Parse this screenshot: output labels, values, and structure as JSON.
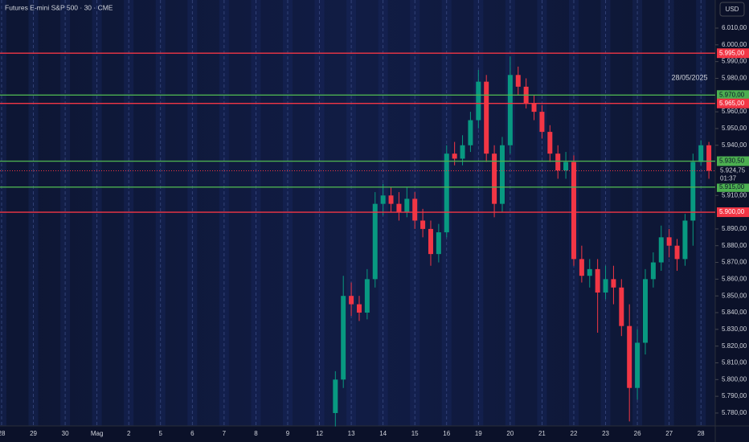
{
  "chart_data": {
    "type": "candlestick",
    "title": "Futures E-mini S&P 500 · 30 · CME",
    "currency": "USD",
    "annotation": "28/05/2025",
    "countdown": "01:37",
    "categories": [
      "28",
      "29",
      "30",
      "Mag",
      "2",
      "5",
      "6",
      "7",
      "8",
      "9",
      "12",
      "13",
      "14",
      "15",
      "16",
      "19",
      "20",
      "21",
      "22",
      "23",
      "26",
      "27",
      "28"
    ],
    "xlim": [
      -0.05,
      22.45
    ],
    "ylim": [
      5772.3,
      6026.8
    ],
    "yticks": [
      {
        "value": 6010,
        "label": "6.010,00"
      },
      {
        "value": 6000,
        "label": "6.000,00"
      },
      {
        "value": 5990,
        "label": "5.990,00"
      },
      {
        "value": 5980,
        "label": "5.980,00"
      },
      {
        "value": 5960,
        "label": "5.960,00"
      },
      {
        "value": 5950,
        "label": "5.950,00"
      },
      {
        "value": 5940,
        "label": "5.940,00"
      },
      {
        "value": 5910,
        "label": "5.910,00"
      },
      {
        "value": 5890,
        "label": "5.890,00"
      },
      {
        "value": 5880,
        "label": "5.880,00"
      },
      {
        "value": 5870,
        "label": "5.870,00"
      },
      {
        "value": 5860,
        "label": "5.860,00"
      },
      {
        "value": 5850,
        "label": "5.850,00"
      },
      {
        "value": 5840,
        "label": "5.840,00"
      },
      {
        "value": 5830,
        "label": "5.830,00"
      },
      {
        "value": 5820,
        "label": "5.820,00"
      },
      {
        "value": 5810,
        "label": "5.810,00"
      },
      {
        "value": 5800,
        "label": "5.800,00"
      },
      {
        "value": 5790,
        "label": "5.790,00"
      },
      {
        "value": 5780,
        "label": "5.780,00"
      }
    ],
    "levels": [
      {
        "value": 5995,
        "label": "5.995,00",
        "color": "#f23645"
      },
      {
        "value": 5970,
        "label": "5.970,00",
        "color": "#4caf50"
      },
      {
        "value": 5965,
        "label": "5.965,00",
        "color": "#f23645"
      },
      {
        "value": 5930.5,
        "label": "5.930,50",
        "color": "#4caf50"
      },
      {
        "value": 5915,
        "label": "5.915,00",
        "color": "#4caf50"
      },
      {
        "value": 5900,
        "label": "5.900,00",
        "color": "#f23645"
      }
    ],
    "last_price": {
      "value": 5924.75,
      "label": "5.924,75"
    },
    "up_color": "#089981",
    "down_color": "#f23645",
    "x": [
      10.5,
      10.75,
      11,
      11.25,
      11.5,
      11.75,
      12,
      12.25,
      12.5,
      12.75,
      13,
      13.25,
      13.5,
      13.75,
      14,
      14.25,
      14.5,
      14.75,
      15,
      15.25,
      15.5,
      15.75,
      16,
      16.25,
      16.5,
      16.75,
      17,
      17.25,
      17.5,
      17.75,
      18,
      18.25,
      18.5,
      18.75,
      19,
      19.25,
      19.5,
      19.75,
      20,
      20.25,
      20.5,
      20.75,
      21,
      21.25,
      21.5,
      21.75,
      22,
      22.25
    ],
    "open": [
      5780,
      5800,
      5850,
      5845,
      5840,
      5860,
      5905,
      5910,
      5905,
      5900,
      5908,
      5895,
      5890,
      5875,
      5888,
      5935,
      5932,
      5940,
      5955,
      5978,
      5935,
      5905,
      5940,
      5982,
      5975,
      5965,
      5960,
      5948,
      5935,
      5925,
      5930,
      5872,
      5862,
      5866,
      5852,
      5860,
      5855,
      5832,
      5795,
      5822,
      5860,
      5870,
      5885,
      5880,
      5872,
      5895,
      5930,
      5940
    ],
    "high": [
      5805,
      5862,
      5858,
      5850,
      5866,
      5912,
      5917,
      5915,
      5912,
      5915,
      5912,
      5902,
      5895,
      5893,
      5940,
      5942,
      5946,
      5960,
      5985,
      5982,
      5940,
      5945,
      5993,
      5987,
      5980,
      5970,
      5964,
      5952,
      5940,
      5936,
      5934,
      5880,
      5872,
      5872,
      5868,
      5868,
      5860,
      5845,
      5830,
      5866,
      5876,
      5892,
      5890,
      5884,
      5899,
      5935,
      5943,
      5942
    ],
    "low": [
      5772,
      5795,
      5838,
      5835,
      5836,
      5855,
      5898,
      5900,
      5895,
      5897,
      5890,
      5885,
      5868,
      5870,
      5885,
      5928,
      5928,
      5936,
      5950,
      5930,
      5897,
      5900,
      5935,
      5970,
      5962,
      5955,
      5944,
      5930,
      5920,
      5920,
      5868,
      5858,
      5855,
      5828,
      5848,
      5845,
      5826,
      5775,
      5788,
      5815,
      5855,
      5865,
      5873,
      5865,
      5868,
      5880,
      5928,
      5920
    ],
    "close": [
      5800,
      5850,
      5845,
      5840,
      5860,
      5905,
      5910,
      5905,
      5900,
      5908,
      5895,
      5890,
      5875,
      5888,
      5935,
      5932,
      5940,
      5955,
      5978,
      5935,
      5905,
      5940,
      5982,
      5975,
      5965,
      5960,
      5948,
      5935,
      5925,
      5930,
      5872,
      5862,
      5866,
      5852,
      5860,
      5855,
      5832,
      5795,
      5822,
      5860,
      5870,
      5885,
      5880,
      5872,
      5895,
      5930,
      5940,
      5924.75
    ]
  }
}
